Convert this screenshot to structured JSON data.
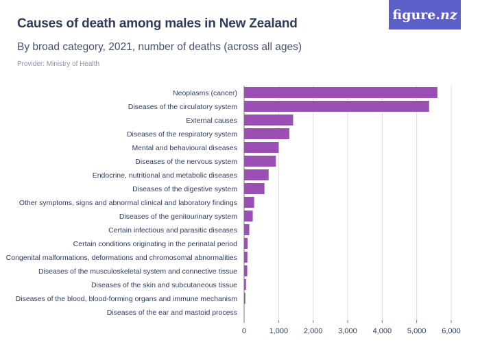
{
  "header": {
    "title": "Causes of death among males in New Zealand",
    "subtitle": "By broad category, 2021, number of deaths (across all ages)",
    "provider": "Provider: Ministry of Health"
  },
  "logo": {
    "text_main": "figure",
    "text_dot": ".",
    "text_nz": "nz",
    "bg_color": "#5b5fc7"
  },
  "chart_data": {
    "type": "bar",
    "orientation": "horizontal",
    "title": "Causes of death among males in New Zealand",
    "subtitle": "By broad category, 2021, number of deaths (across all ages)",
    "xlabel": "",
    "ylabel": "",
    "xlim": [
      0,
      6000
    ],
    "ticks": [
      "0",
      "1,000",
      "2,000",
      "3,000",
      "4,000",
      "5,000",
      "6,000"
    ],
    "grid": true,
    "bar_color": "#9b4fb5",
    "categories": [
      "Neoplasms (cancer)",
      "Diseases of the circulatory system",
      "External causes",
      "Diseases of the respiratory system",
      "Mental and behavioural diseases",
      "Diseases of the nervous system",
      "Endocrine, nutritional and metabolic diseases",
      "Diseases of the digestive system",
      "Other symptoms, signs and abnormal clinical and laboratory findings",
      "Diseases of the genitourinary system",
      "Certain infectious and parasitic diseases",
      "Certain conditions originating in the perinatal period",
      "Congenital malformations, deformations and chromosomal abnormalities",
      "Diseases of the musculoskeletal system and connective tissue",
      "Diseases of the skin and subcutaneous tissue",
      "Diseases of the blood, blood-forming organs and immune mechanism",
      "Diseases of the ear and mastoid process"
    ],
    "values": [
      5600,
      5360,
      1420,
      1310,
      1000,
      920,
      710,
      590,
      290,
      250,
      150,
      100,
      95,
      90,
      55,
      35,
      5
    ]
  }
}
